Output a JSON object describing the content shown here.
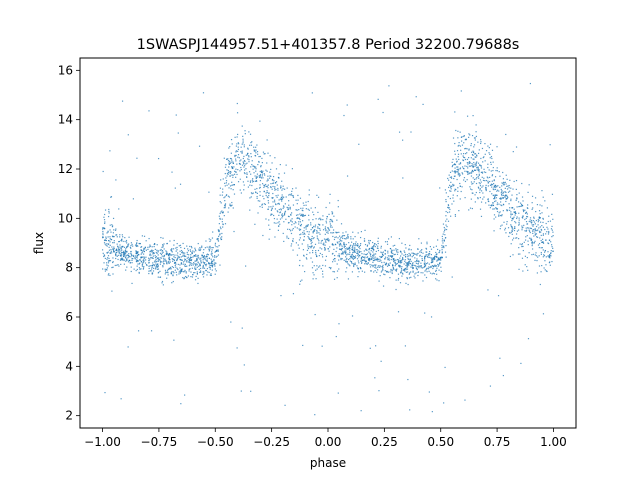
{
  "chart_data": {
    "type": "scatter",
    "title": "1SWASPJ144957.51+401357.8 Period 32200.79688s",
    "xlabel": "phase",
    "ylabel": "flux",
    "xlim": [
      -1.1,
      1.1
    ],
    "ylim": [
      1.5,
      16.5
    ],
    "xticks": [
      -1.0,
      -0.75,
      -0.5,
      -0.25,
      0.0,
      0.25,
      0.5,
      0.75,
      1.0
    ],
    "xtick_labels": [
      "−1.00",
      "−0.75",
      "−0.50",
      "−0.25",
      "0.00",
      "0.25",
      "0.50",
      "0.75",
      "1.00"
    ],
    "yticks": [
      2,
      4,
      6,
      8,
      10,
      12,
      14,
      16
    ],
    "ytick_labels": [
      "2",
      "4",
      "6",
      "8",
      "10",
      "12",
      "14",
      "16"
    ],
    "grid": false,
    "marker_color": "#1f77b4",
    "profile": {
      "phase": [
        -0.5,
        -0.45,
        -0.4,
        -0.35,
        -0.3,
        -0.25,
        -0.2,
        -0.15,
        -0.1,
        -0.05,
        0.0,
        0.05,
        0.1,
        0.15,
        0.2,
        0.25,
        0.3,
        0.35,
        0.4,
        0.45,
        0.5
      ],
      "flux": [
        8.3,
        11.5,
        12.4,
        12.2,
        11.6,
        11.0,
        10.4,
        9.9,
        9.5,
        9.2,
        9.0,
        8.8,
        8.6,
        8.5,
        8.4,
        8.35,
        8.3,
        8.25,
        8.2,
        8.25,
        8.3
      ]
    }
  }
}
